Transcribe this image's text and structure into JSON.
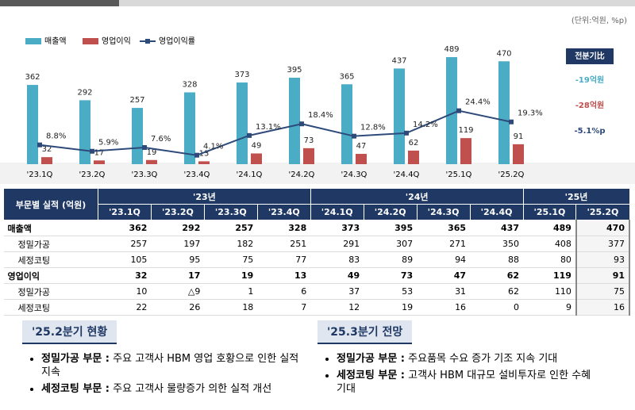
{
  "chart_data": {
    "type": "bar",
    "unit_note": "(단위:억원, %p)",
    "categories": [
      "'23.1Q",
      "'23.2Q",
      "'23.3Q",
      "'23.4Q",
      "'24.1Q",
      "'24.2Q",
      "'24.3Q",
      "'24.4Q",
      "'25.1Q",
      "'25.2Q"
    ],
    "series": [
      {
        "name": "매출액",
        "color": "#4bacc6",
        "values": [
          362,
          292,
          257,
          328,
          373,
          395,
          365,
          437,
          489,
          470
        ]
      },
      {
        "name": "영업이익",
        "color": "#c0504d",
        "values": [
          32,
          17,
          19,
          13,
          49,
          73,
          47,
          62,
          119,
          91
        ]
      },
      {
        "name": "영업이익률",
        "type": "line",
        "axis": "y2",
        "color": "#2e4a7a",
        "values": [
          8.8,
          5.9,
          7.6,
          4.1,
          13.1,
          18.4,
          12.8,
          14.2,
          24.4,
          19.3
        ],
        "value_labels": [
          "8.8%",
          "5.9%",
          "7.6%",
          "4.1%",
          "13.1%",
          "18.4%",
          "12.8%",
          "14.2%",
          "24.4%",
          "19.3%"
        ]
      }
    ],
    "ylim": [
      0,
      500
    ],
    "y2lim": [
      0,
      50
    ]
  },
  "comparison": {
    "title": "전분기比",
    "items": [
      "-19억원",
      "-28억원",
      "-5.1%p"
    ]
  },
  "table": {
    "corner": "부문별 실적 (억원)",
    "years": [
      "'23년",
      "'24년",
      "'25년"
    ],
    "quarters": [
      "'23.1Q",
      "'23.2Q",
      "'23.3Q",
      "'23.4Q",
      "'24.1Q",
      "'24.2Q",
      "'24.3Q",
      "'24.4Q",
      "'25.1Q",
      "'25.2Q"
    ],
    "rows": [
      {
        "label": "매출액",
        "values": [
          362,
          292,
          257,
          328,
          373,
          395,
          365,
          437,
          489,
          470
        ]
      },
      {
        "label": "정밀가공",
        "values": [
          257,
          197,
          182,
          251,
          291,
          307,
          271,
          350,
          408,
          377
        ]
      },
      {
        "label": "세정코팅",
        "values": [
          105,
          95,
          75,
          77,
          83,
          89,
          94,
          88,
          80,
          93
        ]
      },
      {
        "label": "영업이익",
        "values": [
          32,
          17,
          19,
          13,
          49,
          73,
          47,
          62,
          119,
          91
        ]
      },
      {
        "label": "정밀가공",
        "values": [
          10,
          "△9",
          1,
          6,
          37,
          53,
          31,
          62,
          110,
          75
        ]
      },
      {
        "label": "세정코팅",
        "values": [
          22,
          26,
          18,
          7,
          12,
          19,
          16,
          0,
          9,
          16
        ]
      }
    ]
  },
  "sections": [
    {
      "title": "'25.2분기 현황",
      "items": [
        {
          "head": "정밀가공 부문 :",
          "text": "주요 고객사 HBM 영업 호황으로 인한 실적 지속"
        },
        {
          "head": "세정코팅 부문 :",
          "text": "주요 고객사 물량증가 의한 실적 개선"
        }
      ]
    },
    {
      "title": "'25.3분기 전망",
      "items": [
        {
          "head": "정밀가공 부문 :",
          "text": "주요품목 수요 증가 기조 지속 기대"
        },
        {
          "head": "세정코팅 부문 :",
          "text": "고객사 HBM 대규모 설비투자로 인한 수혜 기대"
        }
      ]
    }
  ]
}
